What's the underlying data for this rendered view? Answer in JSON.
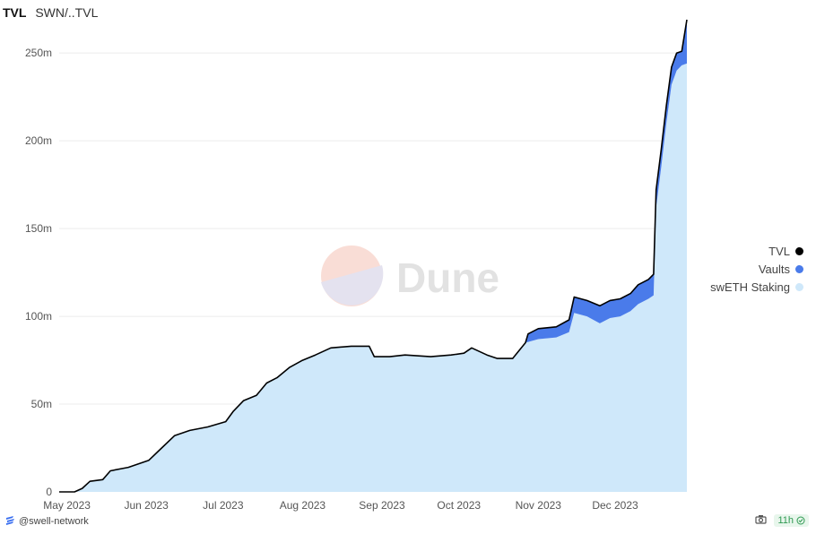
{
  "header": {
    "title": "TVL",
    "query": "SWN/..TVL"
  },
  "footer": {
    "author": "@swell-network",
    "age": "11h"
  },
  "watermark": {
    "text": "Dune"
  },
  "chart_data": {
    "type": "area",
    "title": "TVL",
    "x_start": "2023-04-28",
    "x_end": "2023-12-29",
    "xticks": [
      "May 2023",
      "Jun 2023",
      "Jul 2023",
      "Aug 2023",
      "Sep 2023",
      "Oct 2023",
      "Nov 2023",
      "Dec 2023"
    ],
    "xtick_dates": [
      "2023-05-01",
      "2023-06-01",
      "2023-07-01",
      "2023-08-01",
      "2023-09-01",
      "2023-10-01",
      "2023-11-01",
      "2023-12-01"
    ],
    "ylim": [
      0,
      270
    ],
    "yticks": [
      0,
      50,
      100,
      150,
      200,
      250
    ],
    "ytick_labels": [
      "0",
      "50m",
      "100m",
      "150m",
      "200m",
      "250m"
    ],
    "grid": true,
    "legend_position": "right",
    "colors": {
      "TVL": "#000000",
      "Vaults": "#4a7bea",
      "swETH Staking": "#cfe8fa"
    },
    "series": [
      {
        "name": "swETH Staking",
        "points": [
          [
            "2023-04-28",
            0
          ],
          [
            "2023-05-04",
            0
          ],
          [
            "2023-05-07",
            2
          ],
          [
            "2023-05-10",
            6
          ],
          [
            "2023-05-15",
            7
          ],
          [
            "2023-05-18",
            12
          ],
          [
            "2023-05-25",
            14
          ],
          [
            "2023-06-02",
            18
          ],
          [
            "2023-06-07",
            25
          ],
          [
            "2023-06-12",
            32
          ],
          [
            "2023-06-18",
            35
          ],
          [
            "2023-06-25",
            37
          ],
          [
            "2023-07-02",
            40
          ],
          [
            "2023-07-05",
            46
          ],
          [
            "2023-07-09",
            52
          ],
          [
            "2023-07-14",
            55
          ],
          [
            "2023-07-18",
            62
          ],
          [
            "2023-07-22",
            65
          ],
          [
            "2023-07-27",
            71
          ],
          [
            "2023-08-01",
            75
          ],
          [
            "2023-08-06",
            78
          ],
          [
            "2023-08-12",
            82
          ],
          [
            "2023-08-20",
            83
          ],
          [
            "2023-08-27",
            83
          ],
          [
            "2023-08-29",
            77
          ],
          [
            "2023-09-04",
            77
          ],
          [
            "2023-09-10",
            78
          ],
          [
            "2023-09-20",
            77
          ],
          [
            "2023-09-28",
            78
          ],
          [
            "2023-10-03",
            79
          ],
          [
            "2023-10-06",
            82
          ],
          [
            "2023-10-12",
            78
          ],
          [
            "2023-10-16",
            76
          ],
          [
            "2023-10-22",
            76
          ],
          [
            "2023-10-27",
            85
          ],
          [
            "2023-11-01",
            87
          ],
          [
            "2023-11-08",
            88
          ],
          [
            "2023-11-13",
            91
          ],
          [
            "2023-11-15",
            102
          ],
          [
            "2023-11-20",
            100
          ],
          [
            "2023-11-25",
            96
          ],
          [
            "2023-11-29",
            99
          ],
          [
            "2023-12-03",
            100
          ],
          [
            "2023-12-07",
            103
          ],
          [
            "2023-12-10",
            107
          ],
          [
            "2023-12-14",
            110
          ],
          [
            "2023-12-16",
            112
          ],
          [
            "2023-12-17",
            162
          ],
          [
            "2023-12-19",
            185
          ],
          [
            "2023-12-21",
            210
          ],
          [
            "2023-12-23",
            232
          ],
          [
            "2023-12-25",
            240
          ],
          [
            "2023-12-27",
            243
          ],
          [
            "2023-12-29",
            244
          ]
        ]
      },
      {
        "name": "Vaults",
        "points": [
          [
            "2023-04-28",
            0
          ],
          [
            "2023-10-27",
            0
          ],
          [
            "2023-10-28",
            5
          ],
          [
            "2023-11-01",
            6
          ],
          [
            "2023-11-08",
            6
          ],
          [
            "2023-11-13",
            7
          ],
          [
            "2023-11-15",
            9
          ],
          [
            "2023-11-20",
            9
          ],
          [
            "2023-11-25",
            10
          ],
          [
            "2023-11-29",
            10
          ],
          [
            "2023-12-03",
            10
          ],
          [
            "2023-12-07",
            10
          ],
          [
            "2023-12-10",
            11
          ],
          [
            "2023-12-14",
            11
          ],
          [
            "2023-12-16",
            12
          ],
          [
            "2023-12-17",
            10
          ],
          [
            "2023-12-19",
            10
          ],
          [
            "2023-12-21",
            10
          ],
          [
            "2023-12-23",
            10
          ],
          [
            "2023-12-25",
            10
          ],
          [
            "2023-12-27",
            8
          ],
          [
            "2023-12-29",
            25
          ]
        ]
      },
      {
        "name": "TVL",
        "points": [
          [
            "2023-04-28",
            0
          ],
          [
            "2023-05-04",
            0
          ],
          [
            "2023-05-07",
            2
          ],
          [
            "2023-05-10",
            6
          ],
          [
            "2023-05-15",
            7
          ],
          [
            "2023-05-18",
            12
          ],
          [
            "2023-05-25",
            14
          ],
          [
            "2023-06-02",
            18
          ],
          [
            "2023-06-07",
            25
          ],
          [
            "2023-06-12",
            32
          ],
          [
            "2023-06-18",
            35
          ],
          [
            "2023-06-25",
            37
          ],
          [
            "2023-07-02",
            40
          ],
          [
            "2023-07-05",
            46
          ],
          [
            "2023-07-09",
            52
          ],
          [
            "2023-07-14",
            55
          ],
          [
            "2023-07-18",
            62
          ],
          [
            "2023-07-22",
            65
          ],
          [
            "2023-07-27",
            71
          ],
          [
            "2023-08-01",
            75
          ],
          [
            "2023-08-06",
            78
          ],
          [
            "2023-08-12",
            82
          ],
          [
            "2023-08-20",
            83
          ],
          [
            "2023-08-27",
            83
          ],
          [
            "2023-08-29",
            77
          ],
          [
            "2023-09-04",
            77
          ],
          [
            "2023-09-10",
            78
          ],
          [
            "2023-09-20",
            77
          ],
          [
            "2023-09-28",
            78
          ],
          [
            "2023-10-03",
            79
          ],
          [
            "2023-10-06",
            82
          ],
          [
            "2023-10-12",
            78
          ],
          [
            "2023-10-16",
            76
          ],
          [
            "2023-10-22",
            76
          ],
          [
            "2023-10-27",
            85
          ],
          [
            "2023-10-28",
            90
          ],
          [
            "2023-11-01",
            93
          ],
          [
            "2023-11-08",
            94
          ],
          [
            "2023-11-13",
            98
          ],
          [
            "2023-11-15",
            111
          ],
          [
            "2023-11-20",
            109
          ],
          [
            "2023-11-25",
            106
          ],
          [
            "2023-11-29",
            109
          ],
          [
            "2023-12-03",
            110
          ],
          [
            "2023-12-07",
            113
          ],
          [
            "2023-12-10",
            118
          ],
          [
            "2023-12-14",
            121
          ],
          [
            "2023-12-16",
            124
          ],
          [
            "2023-12-17",
            172
          ],
          [
            "2023-12-19",
            195
          ],
          [
            "2023-12-21",
            220
          ],
          [
            "2023-12-23",
            242
          ],
          [
            "2023-12-25",
            250
          ],
          [
            "2023-12-27",
            251
          ],
          [
            "2023-12-29",
            269
          ]
        ]
      }
    ]
  }
}
